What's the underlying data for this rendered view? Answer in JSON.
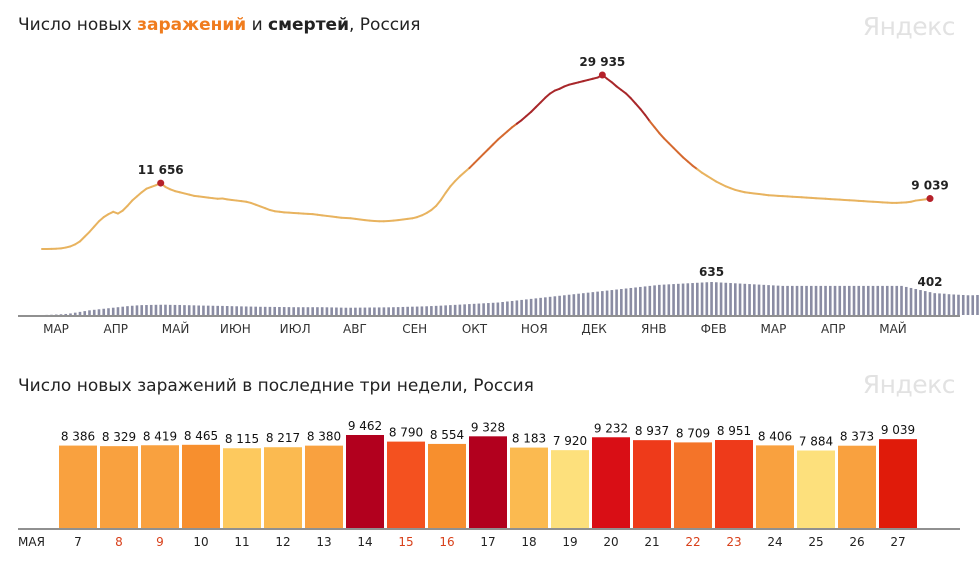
{
  "header": {
    "title1_prefix": "Число новых ",
    "title1_cases": "заражений",
    "title1_mid": " и ",
    "title1_deaths": "смертей",
    "title1_suffix": ", Россия",
    "title2": "Число новых заражений в последние три недели, Россия",
    "logo": "Яндекс"
  },
  "colors": {
    "line_low": "#e8b35f",
    "line_mid": "#d5692f",
    "line_high": "#a8272a",
    "deaths_bar": "#8a8ca3",
    "point": "#b5212a"
  },
  "chart_data": [
    {
      "type": "line",
      "series": [
        {
          "name": "заражений",
          "values": [
            500,
            500,
            520,
            560,
            620,
            750,
            950,
            1300,
            1800,
            2600,
            3400,
            4300,
            5200,
            5900,
            6400,
            6800,
            6500,
            7000,
            7800,
            8700,
            9400,
            10100,
            10700,
            11000,
            11300,
            11656,
            11000,
            10600,
            10300,
            10100,
            9900,
            9700,
            9500,
            9400,
            9300,
            9200,
            9100,
            9000,
            9050,
            8900,
            8800,
            8700,
            8600,
            8500,
            8300,
            8000,
            7700,
            7400,
            7100,
            6900,
            6800,
            6700,
            6650,
            6600,
            6550,
            6500,
            6450,
            6400,
            6300,
            6200,
            6100,
            6000,
            5900,
            5800,
            5750,
            5700,
            5600,
            5500,
            5400,
            5300,
            5250,
            5200,
            5200,
            5250,
            5300,
            5400,
            5500,
            5600,
            5700,
            5900,
            6200,
            6600,
            7100,
            7800,
            8800,
            10000,
            11100,
            12000,
            12800,
            13500,
            14200,
            15000,
            15800,
            16600,
            17400,
            18200,
            19000,
            19700,
            20400,
            21100,
            21700,
            22300,
            23000,
            23700,
            24500,
            25300,
            26100,
            26800,
            27300,
            27600,
            28000,
            28300,
            28500,
            28700,
            28900,
            29100,
            29300,
            29500,
            29935,
            29300,
            28700,
            28000,
            27400,
            26800,
            26000,
            25100,
            24200,
            23200,
            22100,
            21100,
            20100,
            19200,
            18400,
            17600,
            16800,
            16000,
            15300,
            14600,
            14000,
            13400,
            12900,
            12400,
            11900,
            11500,
            11100,
            10800,
            10500,
            10300,
            10100,
            10000,
            9900,
            9800,
            9700,
            9600,
            9550,
            9500,
            9450,
            9400,
            9350,
            9300,
            9250,
            9200,
            9150,
            9100,
            9050,
            9000,
            8950,
            8900,
            8850,
            8800,
            8750,
            8700,
            8650,
            8600,
            8550,
            8500,
            8450,
            8400,
            8350,
            8300,
            8300,
            8350,
            8400,
            8500,
            8700,
            8800,
            8900,
            9039
          ]
        },
        {
          "name": "смертей",
          "values": [
            0,
            2,
            5,
            9,
            14,
            20,
            30,
            45,
            60,
            75,
            90,
            100,
            110,
            120,
            130,
            140,
            150,
            160,
            170,
            178,
            185,
            190,
            192,
            194,
            196,
            197,
            198,
            195,
            194,
            193,
            190,
            188,
            186,
            183,
            181,
            180,
            178,
            176,
            175,
            173,
            170,
            168,
            166,
            164,
            162,
            160,
            158,
            157,
            156,
            155,
            154,
            153,
            152,
            150,
            150,
            150,
            150,
            150,
            150,
            150,
            148,
            146,
            144,
            142,
            140,
            140,
            141,
            142,
            143,
            144,
            145,
            146,
            147,
            148,
            150,
            152,
            155,
            158,
            160,
            162,
            165,
            168,
            172,
            176,
            180,
            185,
            190,
            195,
            200,
            205,
            210,
            215,
            220,
            225,
            230,
            235,
            240,
            250,
            260,
            270,
            280,
            290,
            300,
            310,
            320,
            330,
            340,
            350,
            360,
            370,
            380,
            390,
            400,
            410,
            420,
            430,
            440,
            450,
            460,
            470,
            480,
            490,
            500,
            510,
            520,
            530,
            540,
            550,
            560,
            570,
            580,
            585,
            590,
            595,
            600,
            605,
            610,
            615,
            620,
            625,
            630,
            635,
            630,
            625,
            620,
            615,
            610,
            605,
            600,
            595,
            590,
            585,
            580,
            575,
            570,
            565,
            560,
            560,
            560,
            560,
            560,
            560,
            560,
            560,
            560,
            560,
            560,
            560,
            560,
            560,
            560,
            560,
            560,
            560,
            560,
            560,
            560,
            560,
            560,
            560,
            560,
            560,
            540,
            520,
            500,
            480,
            460,
            440,
            420,
            415,
            410,
            400,
            395,
            390,
            385,
            380,
            380,
            385,
            390,
            395,
            400,
            402
          ]
        }
      ],
      "annotations": [
        {
          "label": "11 656"
        },
        {
          "label": "29 935"
        },
        {
          "label": "9 039"
        },
        {
          "label": "635"
        },
        {
          "label": "402"
        }
      ],
      "x_ticks": [
        "МАР",
        "АПР",
        "МАЙ",
        "ИЮН",
        "ИЮЛ",
        "АВГ",
        "СЕН",
        "ОКТ",
        "НОЯ",
        "ДЕК",
        "ЯНВ",
        "ФЕВ",
        "МАР",
        "АПР",
        "МАЙ"
      ],
      "ylim": [
        0,
        32000
      ]
    },
    {
      "type": "bar",
      "month_label": "МАЯ",
      "categories": [
        "7",
        "8",
        "9",
        "10",
        "11",
        "12",
        "13",
        "14",
        "15",
        "16",
        "17",
        "18",
        "19",
        "20",
        "21",
        "22",
        "23",
        "24",
        "25",
        "26",
        "27"
      ],
      "labels": [
        "8 386",
        "8 329",
        "8 419",
        "8 465",
        "8 115",
        "8 217",
        "8 380",
        "9 462",
        "8 790",
        "8 554",
        "9 328",
        "8 183",
        "7 920",
        "9 232",
        "8 937",
        "8 709",
        "8 951",
        "8 406",
        "7 884",
        "8 373",
        "9 039"
      ],
      "values": [
        8386,
        8329,
        8419,
        8465,
        8115,
        8217,
        8380,
        9462,
        8790,
        8554,
        9328,
        8183,
        7920,
        9232,
        8937,
        8709,
        8951,
        8406,
        7884,
        8373,
        9039
      ],
      "weekend": [
        false,
        true,
        true,
        false,
        false,
        false,
        false,
        false,
        true,
        true,
        false,
        false,
        false,
        false,
        false,
        true,
        true,
        false,
        false,
        false,
        false
      ],
      "colors": [
        "#f9a13f",
        "#f9a13f",
        "#f9a13f",
        "#f78f2e",
        "#fdc95e",
        "#fbba50",
        "#f9a13f",
        "#b2001e",
        "#f4511f",
        "#f78f2e",
        "#b2001e",
        "#fbba50",
        "#fde07c",
        "#d90e15",
        "#ee3a1a",
        "#f47429",
        "#ee3a1a",
        "#f9a13f",
        "#fde07c",
        "#f9a13f",
        "#e01b0a"
      ],
      "ylim": [
        0,
        9462
      ]
    }
  ]
}
